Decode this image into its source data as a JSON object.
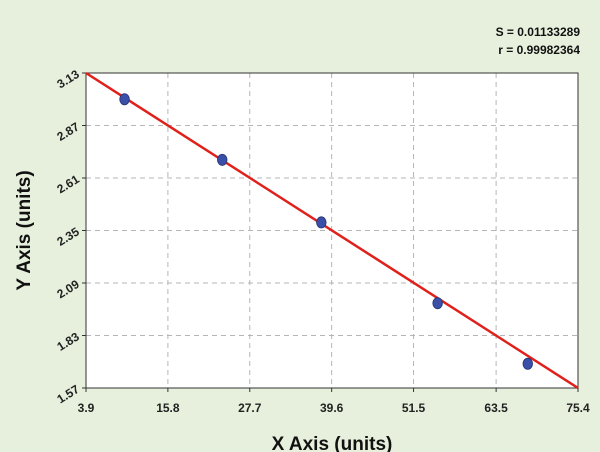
{
  "chart_data": {
    "type": "scatter",
    "title": "",
    "xlabel": "X Axis (units)",
    "ylabel": "Y Axis (units)",
    "xlim": [
      3.9,
      75.4
    ],
    "ylim": [
      1.57,
      3.13
    ],
    "x_ticks": [
      "3.9",
      "15.8",
      "27.7",
      "39.6",
      "51.5",
      "63.5",
      "75.4"
    ],
    "y_ticks": [
      "1.57",
      "1.83",
      "2.09",
      "2.35",
      "2.61",
      "2.87",
      "3.13"
    ],
    "grid": true,
    "series": [
      {
        "type": "scatter",
        "x": [
          9.5,
          23.7,
          38.1,
          55.0,
          68.1
        ],
        "y": [
          3.0,
          2.7,
          2.39,
          1.99,
          1.69
        ],
        "color": "#3a4fa8"
      },
      {
        "type": "line",
        "x": [
          3.9,
          75.4
        ],
        "y": [
          3.13,
          1.57
        ],
        "color": "#e0201b"
      }
    ],
    "annotations": {
      "s_text": "S = 0.01133289",
      "r_text": "r = 0.99982364"
    },
    "colors": {
      "background": "#e7f0dc",
      "plot_area": "#ffffff",
      "grid": "#b5b5b5",
      "point": "#3a4fa8",
      "fit_line": "#e0201b"
    }
  }
}
